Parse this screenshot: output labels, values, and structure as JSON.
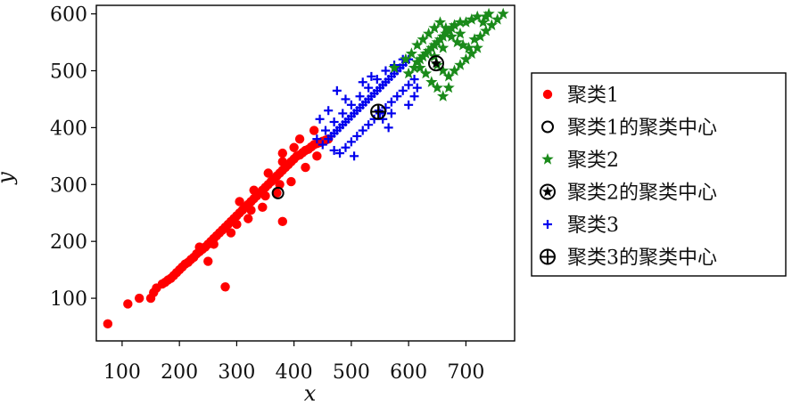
{
  "chart_data": {
    "type": "scatter",
    "title": "",
    "xlabel": "x",
    "ylabel": "y",
    "xlim": [
      55,
      785
    ],
    "ylim": [
      25,
      615
    ],
    "xticks": [
      100,
      200,
      300,
      400,
      500,
      600,
      700
    ],
    "yticks": [
      100,
      200,
      300,
      400,
      500,
      600
    ],
    "grid": false,
    "legend_position": "right-outside",
    "series": [
      {
        "name": "聚类1",
        "marker": "dot",
        "color": "#ff0000",
        "points": [
          [
            75,
            55
          ],
          [
            110,
            90
          ],
          [
            130,
            100
          ],
          [
            150,
            100
          ],
          [
            155,
            110
          ],
          [
            160,
            118
          ],
          [
            170,
            125
          ],
          [
            175,
            128
          ],
          [
            180,
            132
          ],
          [
            185,
            135
          ],
          [
            190,
            140
          ],
          [
            195,
            145
          ],
          [
            200,
            150
          ],
          [
            205,
            155
          ],
          [
            210,
            160
          ],
          [
            215,
            163
          ],
          [
            220,
            168
          ],
          [
            225,
            172
          ],
          [
            230,
            178
          ],
          [
            235,
            182
          ],
          [
            240,
            186
          ],
          [
            245,
            190
          ],
          [
            250,
            195
          ],
          [
            255,
            200
          ],
          [
            260,
            205
          ],
          [
            265,
            210
          ],
          [
            270,
            215
          ],
          [
            275,
            220
          ],
          [
            280,
            225
          ],
          [
            285,
            230
          ],
          [
            290,
            235
          ],
          [
            295,
            240
          ],
          [
            300,
            245
          ],
          [
            305,
            250
          ],
          [
            310,
            255
          ],
          [
            315,
            260
          ],
          [
            320,
            265
          ],
          [
            325,
            270
          ],
          [
            330,
            275
          ],
          [
            335,
            280
          ],
          [
            340,
            285
          ],
          [
            345,
            290
          ],
          [
            350,
            295
          ],
          [
            355,
            300
          ],
          [
            360,
            305
          ],
          [
            365,
            310
          ],
          [
            370,
            315
          ],
          [
            375,
            320
          ],
          [
            380,
            325
          ],
          [
            385,
            330
          ],
          [
            390,
            335
          ],
          [
            395,
            340
          ],
          [
            400,
            345
          ],
          [
            405,
            350
          ],
          [
            410,
            352
          ],
          [
            415,
            356
          ],
          [
            420,
            360
          ],
          [
            425,
            362
          ],
          [
            430,
            366
          ],
          [
            435,
            370
          ],
          [
            440,
            372
          ],
          [
            445,
            374
          ],
          [
            450,
            376
          ],
          [
            455,
            378
          ],
          [
            460,
            380
          ],
          [
            380,
            355
          ],
          [
            410,
            380
          ],
          [
            435,
            395
          ],
          [
            280,
            120
          ],
          [
            250,
            165
          ],
          [
            235,
            190
          ],
          [
            260,
            195
          ],
          [
            290,
            215
          ],
          [
            320,
            240
          ],
          [
            345,
            260
          ],
          [
            370,
            285
          ],
          [
            395,
            305
          ],
          [
            420,
            330
          ],
          [
            440,
            350
          ],
          [
            305,
            270
          ],
          [
            330,
            290
          ],
          [
            355,
            320
          ],
          [
            380,
            340
          ],
          [
            400,
            365
          ],
          [
            300,
            230
          ],
          [
            325,
            255
          ],
          [
            350,
            280
          ],
          [
            375,
            300
          ],
          [
            380,
            235
          ]
        ]
      },
      {
        "name": "聚类1的聚类中心",
        "marker": "circle",
        "color": "#000000",
        "points": [
          [
            372,
            285
          ]
        ]
      },
      {
        "name": "聚类2",
        "marker": "star",
        "color": "#1a8a1a",
        "points": [
          [
            600,
            495
          ],
          [
            610,
            505
          ],
          [
            615,
            515
          ],
          [
            620,
            520
          ],
          [
            625,
            525
          ],
          [
            630,
            530
          ],
          [
            635,
            535
          ],
          [
            640,
            540
          ],
          [
            645,
            545
          ],
          [
            650,
            550
          ],
          [
            655,
            555
          ],
          [
            660,
            560
          ],
          [
            665,
            565
          ],
          [
            670,
            570
          ],
          [
            675,
            575
          ],
          [
            680,
            580
          ],
          [
            690,
            585
          ],
          [
            700,
            585
          ],
          [
            710,
            590
          ],
          [
            720,
            595
          ],
          [
            735,
            595
          ],
          [
            740,
            600
          ],
          [
            765,
            600
          ],
          [
            575,
            505
          ],
          [
            595,
            520
          ],
          [
            605,
            530
          ],
          [
            615,
            545
          ],
          [
            625,
            555
          ],
          [
            635,
            565
          ],
          [
            645,
            575
          ],
          [
            655,
            585
          ],
          [
            665,
            575
          ],
          [
            675,
            560
          ],
          [
            685,
            550
          ],
          [
            695,
            545
          ],
          [
            705,
            540
          ],
          [
            715,
            555
          ],
          [
            725,
            560
          ],
          [
            735,
            570
          ],
          [
            745,
            580
          ],
          [
            650,
            510
          ],
          [
            660,
            500
          ],
          [
            670,
            490
          ],
          [
            680,
            500
          ],
          [
            690,
            510
          ],
          [
            700,
            520
          ],
          [
            710,
            530
          ],
          [
            720,
            540
          ],
          [
            640,
            480
          ],
          [
            650,
            470
          ],
          [
            660,
            455
          ],
          [
            670,
            470
          ],
          [
            630,
            495
          ],
          [
            620,
            505
          ],
          [
            755,
            590
          ],
          [
            730,
            585
          ],
          [
            690,
            565
          ],
          [
            660,
            540
          ],
          [
            645,
            525
          ]
        ]
      },
      {
        "name": "聚类2的聚类中心",
        "marker": "star-circle",
        "color": "#000000",
        "points": [
          [
            648,
            513
          ]
        ]
      },
      {
        "name": "聚类3",
        "marker": "plus",
        "color": "#0000ee",
        "points": [
          [
            460,
            380
          ],
          [
            465,
            385
          ],
          [
            470,
            390
          ],
          [
            475,
            395
          ],
          [
            480,
            400
          ],
          [
            485,
            405
          ],
          [
            490,
            410
          ],
          [
            495,
            415
          ],
          [
            500,
            420
          ],
          [
            505,
            425
          ],
          [
            510,
            430
          ],
          [
            515,
            435
          ],
          [
            520,
            440
          ],
          [
            525,
            445
          ],
          [
            530,
            450
          ],
          [
            535,
            455
          ],
          [
            540,
            460
          ],
          [
            545,
            465
          ],
          [
            550,
            470
          ],
          [
            555,
            475
          ],
          [
            560,
            480
          ],
          [
            565,
            485
          ],
          [
            570,
            490
          ],
          [
            575,
            495
          ],
          [
            580,
            500
          ],
          [
            585,
            505
          ],
          [
            590,
            510
          ],
          [
            595,
            515
          ],
          [
            600,
            520
          ],
          [
            470,
            360
          ],
          [
            480,
            355
          ],
          [
            490,
            365
          ],
          [
            500,
            375
          ],
          [
            510,
            385
          ],
          [
            520,
            395
          ],
          [
            530,
            405
          ],
          [
            540,
            415
          ],
          [
            550,
            425
          ],
          [
            560,
            435
          ],
          [
            570,
            445
          ],
          [
            580,
            455
          ],
          [
            590,
            465
          ],
          [
            600,
            475
          ],
          [
            610,
            485
          ],
          [
            450,
            370
          ],
          [
            440,
            380
          ],
          [
            455,
            395
          ],
          [
            470,
            410
          ],
          [
            485,
            425
          ],
          [
            500,
            440
          ],
          [
            515,
            455
          ],
          [
            530,
            470
          ],
          [
            545,
            485
          ],
          [
            560,
            500
          ],
          [
            575,
            510
          ],
          [
            590,
            520
          ],
          [
            475,
            465
          ],
          [
            490,
            450
          ],
          [
            460,
            430
          ],
          [
            445,
            415
          ],
          [
            505,
            350
          ],
          [
            555,
            415
          ],
          [
            565,
            400
          ],
          [
            570,
            425
          ],
          [
            600,
            440
          ],
          [
            610,
            455
          ],
          [
            615,
            470
          ],
          [
            520,
            480
          ],
          [
            535,
            490
          ],
          [
            548,
            430
          ]
        ]
      },
      {
        "name": "聚类3的聚类中心",
        "marker": "plus-circle",
        "color": "#000000",
        "points": [
          [
            547,
            428
          ]
        ]
      }
    ]
  }
}
